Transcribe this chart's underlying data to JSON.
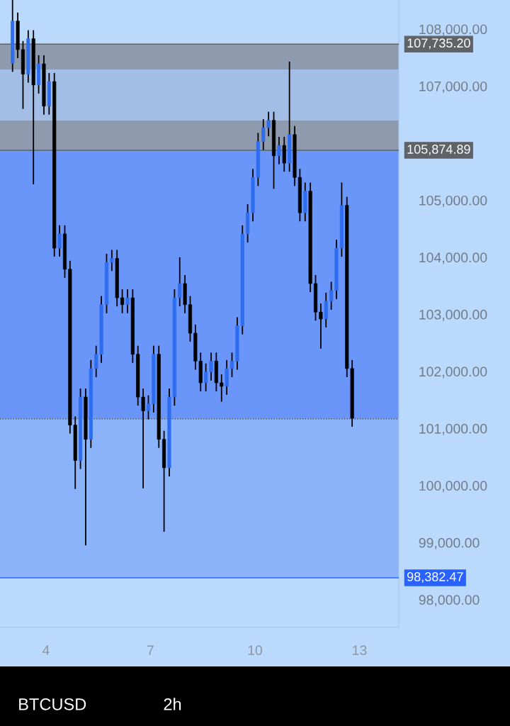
{
  "chart_data": {
    "type": "candlestick",
    "x": [
      3.04,
      3.19,
      3.34,
      3.49,
      3.64,
      3.79,
      3.94,
      4.09,
      4.24,
      4.39,
      4.54,
      4.69,
      4.84,
      4.99,
      5.14,
      5.29,
      5.44,
      5.59,
      5.74,
      5.89,
      6.04,
      6.19,
      6.34,
      6.49,
      6.64,
      6.79,
      6.94,
      7.09,
      7.24,
      7.39,
      7.54,
      7.69,
      7.84,
      7.99,
      8.14,
      8.29,
      8.44,
      8.59,
      8.74,
      8.89,
      9.04,
      9.19,
      9.34,
      9.49,
      9.64,
      9.79,
      9.94,
      10.09,
      10.24,
      10.39,
      10.54,
      10.69,
      10.84,
      10.99,
      11.14,
      11.29,
      11.44,
      11.59,
      11.74,
      11.89,
      12.04,
      12.19,
      12.34,
      12.49,
      12.64,
      12.79
    ],
    "ohlc": [
      [
        107400,
        108510,
        107250,
        108140
      ],
      [
        108140,
        108290,
        107490,
        107640
      ],
      [
        107640,
        107790,
        106600,
        107210
      ],
      [
        107210,
        107980,
        107060,
        107830
      ],
      [
        107830,
        107980,
        105280,
        107020
      ],
      [
        107020,
        107540,
        106870,
        107390
      ],
      [
        107390,
        107540,
        106500,
        106650
      ],
      [
        106650,
        107230,
        106500,
        107080
      ],
      [
        107080,
        107230,
        104010,
        104160
      ],
      [
        104160,
        104560,
        104010,
        104410
      ],
      [
        104410,
        104560,
        103640,
        103790
      ],
      [
        103790,
        103940,
        100910,
        101060
      ],
      [
        101060,
        101210,
        99940,
        100440
      ],
      [
        100440,
        101700,
        100290,
        101550
      ],
      [
        101550,
        101700,
        98950,
        100810
      ],
      [
        100810,
        102200,
        100660,
        102050
      ],
      [
        102050,
        102450,
        101900,
        102300
      ],
      [
        102300,
        103320,
        102150,
        103170
      ],
      [
        103170,
        104060,
        103020,
        103910
      ],
      [
        103910,
        104130,
        103760,
        103980
      ],
      [
        103980,
        104130,
        103140,
        103290
      ],
      [
        103290,
        103440,
        103020,
        103170
      ],
      [
        103170,
        103440,
        103020,
        103290
      ],
      [
        103290,
        103440,
        102150,
        102300
      ],
      [
        102300,
        102450,
        101400,
        101550
      ],
      [
        101550,
        101700,
        99950,
        101310
      ],
      [
        101310,
        101580,
        101160,
        101430
      ],
      [
        101430,
        102450,
        101280,
        102300
      ],
      [
        102300,
        102450,
        100660,
        100810
      ],
      [
        100810,
        100960,
        99190,
        100310
      ],
      [
        100310,
        101700,
        100160,
        101550
      ],
      [
        101550,
        103440,
        101400,
        103290
      ],
      [
        103290,
        104000,
        103140,
        103540
      ],
      [
        103540,
        103690,
        103020,
        103170
      ],
      [
        103170,
        103320,
        102520,
        102670
      ],
      [
        102670,
        102820,
        102030,
        102180
      ],
      [
        102180,
        102330,
        101650,
        101800
      ],
      [
        101800,
        102140,
        101650,
        101990
      ],
      [
        101990,
        102330,
        101840,
        102180
      ],
      [
        102180,
        102330,
        101650,
        101800
      ],
      [
        101800,
        101950,
        101470,
        101740
      ],
      [
        101740,
        102200,
        101590,
        102050
      ],
      [
        102050,
        102330,
        101900,
        102180
      ],
      [
        102180,
        102950,
        102030,
        102800
      ],
      [
        102800,
        104560,
        102650,
        104410
      ],
      [
        104410,
        104930,
        104260,
        104780
      ],
      [
        104780,
        105550,
        104630,
        105400
      ],
      [
        105400,
        106180,
        105250,
        106030
      ],
      [
        106030,
        106420,
        105880,
        106270
      ],
      [
        106270,
        106550,
        106120,
        106400
      ],
      [
        106400,
        106550,
        105200,
        105780
      ],
      [
        105780,
        106110,
        105630,
        105960
      ],
      [
        105960,
        106110,
        105500,
        105650
      ],
      [
        105650,
        107430,
        105500,
        106150
      ],
      [
        106150,
        106300,
        105250,
        105400
      ],
      [
        105400,
        105550,
        104630,
        104780
      ],
      [
        104780,
        105310,
        104630,
        105160
      ],
      [
        105160,
        105310,
        103390,
        103540
      ],
      [
        103540,
        103690,
        102890,
        103040
      ],
      [
        103040,
        103190,
        102400,
        102920
      ],
      [
        102920,
        103380,
        102770,
        103230
      ],
      [
        103230,
        103570,
        103080,
        103420
      ],
      [
        103420,
        104310,
        103270,
        104160
      ],
      [
        104160,
        105310,
        104010,
        104910
      ],
      [
        104910,
        105060,
        101900,
        102050
      ],
      [
        102050,
        102200,
        101030,
        101180
      ]
    ],
    "xticks": [
      {
        "value": 4,
        "label": "4"
      },
      {
        "value": 7,
        "label": "7"
      },
      {
        "value": 10,
        "label": "10"
      },
      {
        "value": 13,
        "label": "13"
      }
    ],
    "xlim": [
      2.68,
      14.13
    ],
    "ylim": [
      97516,
      108509
    ],
    "yticks": [
      {
        "value": 98000,
        "label": "98,000.00"
      },
      {
        "value": 99000,
        "label": "99,000.00"
      },
      {
        "value": 100000,
        "label": "100,000.00"
      },
      {
        "value": 101000,
        "label": "101,000.00"
      },
      {
        "value": 102000,
        "label": "102,000.00"
      },
      {
        "value": 103000,
        "label": "103,000.00"
      },
      {
        "value": 104000,
        "label": "104,000.00"
      },
      {
        "value": 105000,
        "label": "105,000.00"
      },
      {
        "value": 107000,
        "label": "107,000.00"
      },
      {
        "value": 108000,
        "label": "108,000.00"
      }
    ],
    "bands": [
      {
        "axis": "y",
        "from": 106398,
        "to": 107292,
        "color": "#a9c9f8"
      },
      {
        "axis": "y",
        "from": 105874.89,
        "to": 107735.2,
        "color": "#7f8694"
      },
      {
        "axis": "y",
        "from": 101168,
        "to": 105874.89,
        "color": "#4d7ff7"
      },
      {
        "axis": "y",
        "from": 98382.47,
        "to": 101168,
        "color": "#7aa6f8"
      }
    ],
    "ref_lines": [
      {
        "axis": "y",
        "value": 107735.2,
        "label": "107,735.20",
        "color": "#5f6368",
        "line_style": "solid"
      },
      {
        "axis": "y",
        "value": 105874.89,
        "label": "105,874.89",
        "color": "#5f6368",
        "line_style": "solid"
      },
      {
        "axis": "y",
        "value": 98382.47,
        "label": "98,382.47",
        "color": "#2962ff",
        "line_style": "solid"
      },
      {
        "axis": "y",
        "value": 101168,
        "color": "#555555",
        "line_style": "dotted"
      }
    ],
    "annotations": [
      "BTCUSD",
      "2h"
    ],
    "grid": false,
    "legend": false
  }
}
